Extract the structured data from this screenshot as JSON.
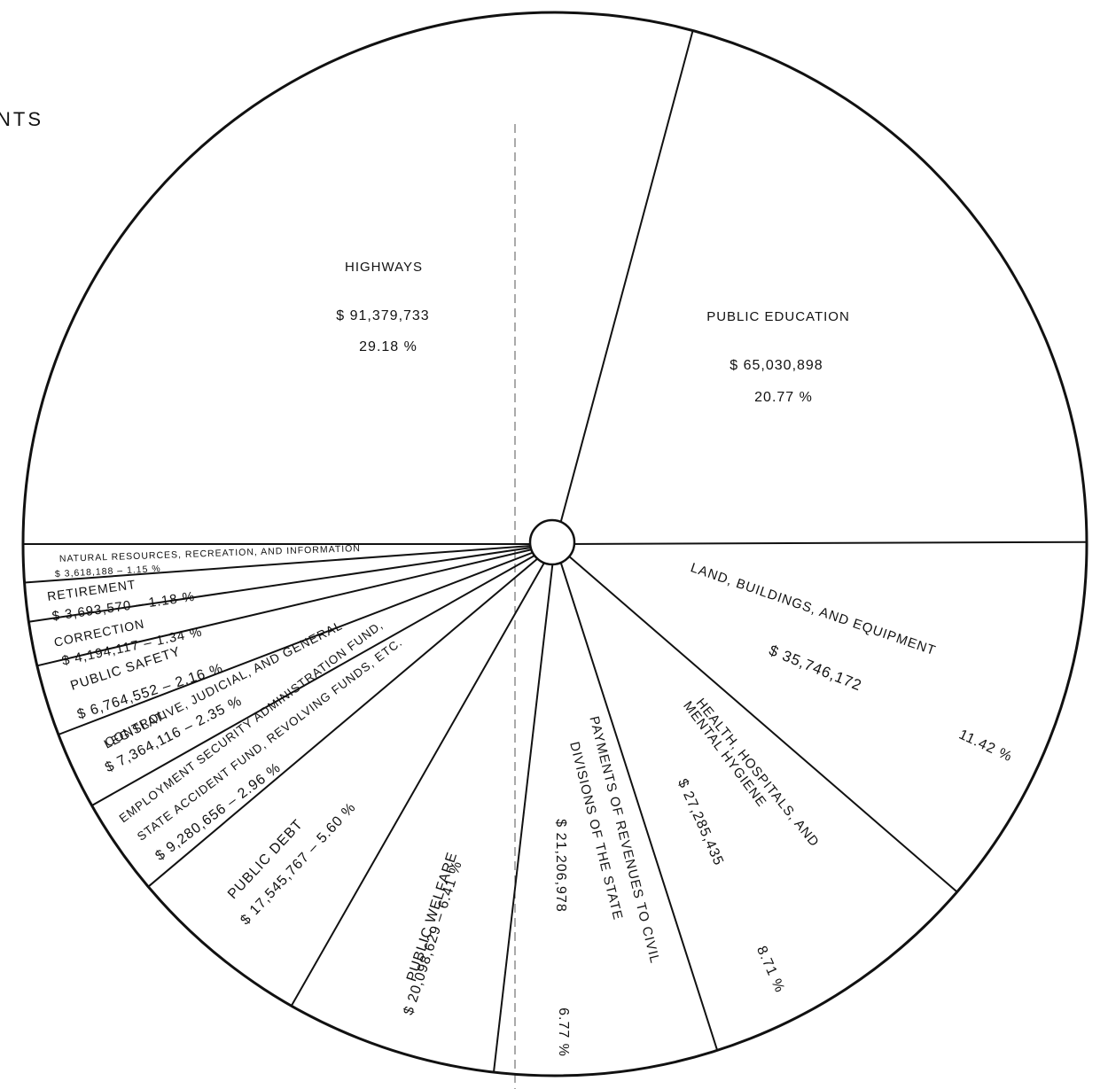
{
  "header": {
    "partial_title": "NTS"
  },
  "chart_data": {
    "type": "pie",
    "title": "",
    "slices": [
      {
        "name": "HIGHWAYS",
        "amount": "$ 91,379,733",
        "value": 91379733,
        "percent": "29.18 %"
      },
      {
        "name": "PUBLIC EDUCATION",
        "amount": "$ 65,030,898",
        "value": 65030898,
        "percent": "20.77 %"
      },
      {
        "name": "LAND, BUILDINGS, AND EQUIPMENT",
        "amount": "$ 35,746,172",
        "value": 35746172,
        "percent": "11.42 %"
      },
      {
        "name": "HEALTH, HOSPITALS, AND MENTAL HYGIENE",
        "name_lines": [
          "HEALTH, HOSPITALS, AND",
          "MENTAL HYGIENE"
        ],
        "amount": "$ 27,285,435",
        "value": 27285435,
        "percent": "8.71 %"
      },
      {
        "name": "PAYMENTS OF REVENUES TO CIVIL DIVISIONS OF THE STATE",
        "name_lines": [
          "PAYMENTS OF REVENUES TO CIVIL",
          "DIVISIONS OF THE STATE"
        ],
        "amount": "$ 21,206,978",
        "value": 21206978,
        "percent": "6.77 %"
      },
      {
        "name": "PUBLIC WELFARE",
        "amount": "$ 20,098,629",
        "value": 20098629,
        "percent": "6.41 %"
      },
      {
        "name": "PUBLIC DEBT",
        "amount": "$ 17,545,767",
        "value": 17545767,
        "percent": "5.60 %"
      },
      {
        "name": "EMPLOYMENT SECURITY ADMINISTRATION FUND, STATE ACCIDENT FUND, REVOLVING FUNDS, ETC.",
        "name_lines": [
          "EMPLOYMENT SECURITY ADMINISTRATION FUND,",
          "STATE ACCIDENT FUND, REVOLVING FUNDS, ETC."
        ],
        "amount": "$ 9,280,656",
        "value": 9280656,
        "percent": "2.96 %"
      },
      {
        "name": "LEGISLATIVE, JUDICIAL, AND GENERAL CONTROL",
        "name_lines": [
          "LEGISLATIVE, JUDICIAL, AND GENERAL",
          "CONTROL"
        ],
        "amount": "$ 7,364,116",
        "value": 7364116,
        "percent": "2.35 %"
      },
      {
        "name": "PUBLIC SAFETY",
        "amount": "$ 6,764,552",
        "value": 6764552,
        "percent": "2.16 %"
      },
      {
        "name": "CORRECTION",
        "amount": "$ 4,194,117",
        "value": 4194117,
        "percent": "1.34 %"
      },
      {
        "name": "RETIREMENT",
        "amount": "$ 3,693,570",
        "value": 3693570,
        "percent": "1.18 %"
      },
      {
        "name": "NATURAL RESOURCES, RECREATION, AND INFORMATION",
        "amount": "$ 3,618,188",
        "value": 3618188,
        "percent": "1.15 %"
      }
    ]
  }
}
